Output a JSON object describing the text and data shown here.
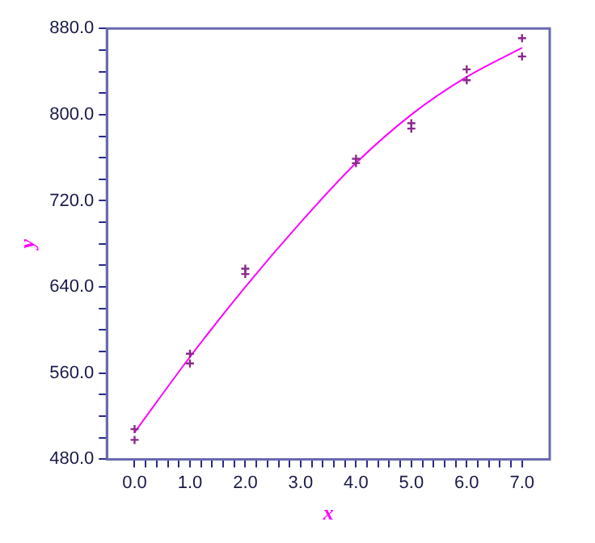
{
  "chart_data": {
    "type": "scatter",
    "xlabel": "x",
    "ylabel": "y",
    "xlim": [
      -0.5,
      7.5
    ],
    "ylim": [
      480,
      880
    ],
    "xticks": [
      {
        "value": 0,
        "label": "0.0"
      },
      {
        "value": 0.2,
        "label": null
      },
      {
        "value": 0.4,
        "label": null
      },
      {
        "value": 0.6,
        "label": null
      },
      {
        "value": 0.8,
        "label": null
      },
      {
        "value": 1,
        "label": "1.0"
      },
      {
        "value": 1.2,
        "label": null
      },
      {
        "value": 1.4,
        "label": null
      },
      {
        "value": 1.6,
        "label": null
      },
      {
        "value": 1.8,
        "label": null
      },
      {
        "value": 2,
        "label": "2.0"
      },
      {
        "value": 2.2,
        "label": null
      },
      {
        "value": 2.4,
        "label": null
      },
      {
        "value": 2.6,
        "label": null
      },
      {
        "value": 2.8,
        "label": null
      },
      {
        "value": 3,
        "label": "3.0"
      },
      {
        "value": 3.2,
        "label": null
      },
      {
        "value": 3.4,
        "label": null
      },
      {
        "value": 3.6,
        "label": null
      },
      {
        "value": 3.8,
        "label": null
      },
      {
        "value": 4,
        "label": "4.0"
      },
      {
        "value": 4.2,
        "label": null
      },
      {
        "value": 4.4,
        "label": null
      },
      {
        "value": 4.6,
        "label": null
      },
      {
        "value": 4.8,
        "label": null
      },
      {
        "value": 5,
        "label": "5.0"
      },
      {
        "value": 5.2,
        "label": null
      },
      {
        "value": 5.4,
        "label": null
      },
      {
        "value": 5.6,
        "label": null
      },
      {
        "value": 5.8,
        "label": null
      },
      {
        "value": 6,
        "label": "6.0"
      },
      {
        "value": 6.2,
        "label": null
      },
      {
        "value": 6.4,
        "label": null
      },
      {
        "value": 6.6,
        "label": null
      },
      {
        "value": 6.8,
        "label": null
      },
      {
        "value": 7,
        "label": "7.0"
      }
    ],
    "yticks": [
      {
        "value": 480,
        "label": "480.0"
      },
      {
        "value": 500,
        "label": null
      },
      {
        "value": 520,
        "label": null
      },
      {
        "value": 540,
        "label": null
      },
      {
        "value": 560,
        "label": "560.0"
      },
      {
        "value": 580,
        "label": null
      },
      {
        "value": 600,
        "label": null
      },
      {
        "value": 620,
        "label": null
      },
      {
        "value": 640,
        "label": "640.0"
      },
      {
        "value": 660,
        "label": null
      },
      {
        "value": 680,
        "label": null
      },
      {
        "value": 700,
        "label": null
      },
      {
        "value": 720,
        "label": "720.0"
      },
      {
        "value": 740,
        "label": null
      },
      {
        "value": 760,
        "label": null
      },
      {
        "value": 780,
        "label": null
      },
      {
        "value": 800,
        "label": "800.0"
      },
      {
        "value": 820,
        "label": null
      },
      {
        "value": 840,
        "label": null
      },
      {
        "value": 860,
        "label": null
      },
      {
        "value": 880,
        "label": "880.0"
      }
    ],
    "grid": false,
    "legend": false,
    "series": [
      {
        "type": "scatter",
        "marker": "cross",
        "color": "#8b2a8b",
        "x": [
          0,
          0,
          1,
          1,
          2,
          2,
          4,
          4,
          5,
          5,
          6,
          6,
          7,
          7
        ],
        "values": [
          508,
          498,
          578,
          569,
          657,
          652,
          759,
          755,
          792,
          787,
          842,
          832,
          871,
          854
        ]
      },
      {
        "type": "line",
        "marker": "none",
        "color": "#ff00ff",
        "x": [
          0,
          1,
          2,
          3,
          4,
          5,
          6,
          7
        ],
        "values": [
          505,
          575,
          640,
          700,
          755,
          800,
          835,
          862
        ]
      }
    ]
  }
}
